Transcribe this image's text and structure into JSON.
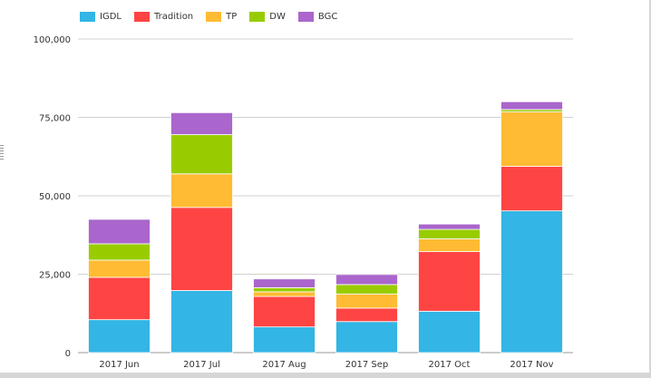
{
  "chart_data": {
    "type": "bar",
    "stacked": true,
    "categories": [
      "2017 Jun",
      "2017 Jul",
      "2017 Aug",
      "2017 Sep",
      "2017 Oct",
      "2017 Nov"
    ],
    "series": [
      {
        "name": "IGDL",
        "color": "#33b5e5",
        "values": [
          10500,
          19800,
          8200,
          9900,
          13200,
          45200
        ]
      },
      {
        "name": "Tradition",
        "color": "#ff4444",
        "values": [
          13500,
          26500,
          9700,
          4300,
          19000,
          14200
        ]
      },
      {
        "name": "TP",
        "color": "#ffbb33",
        "values": [
          5500,
          10700,
          1500,
          4500,
          4100,
          17400
        ]
      },
      {
        "name": "DW",
        "color": "#99cc00",
        "values": [
          5200,
          12500,
          1300,
          3000,
          3000,
          700
        ]
      },
      {
        "name": "BGC",
        "color": "#aa66cc",
        "values": [
          7800,
          7000,
          2800,
          3200,
          1700,
          2500
        ]
      }
    ],
    "ylim": [
      0,
      100000
    ],
    "yticks": [
      "0",
      "25,000",
      "50,000",
      "75,000",
      "100,000"
    ],
    "ytick_values": [
      0,
      25000,
      50000,
      75000,
      100000
    ],
    "grid": true,
    "legend_position": "top-left",
    "title": "",
    "xlabel": "",
    "ylabel": ""
  }
}
